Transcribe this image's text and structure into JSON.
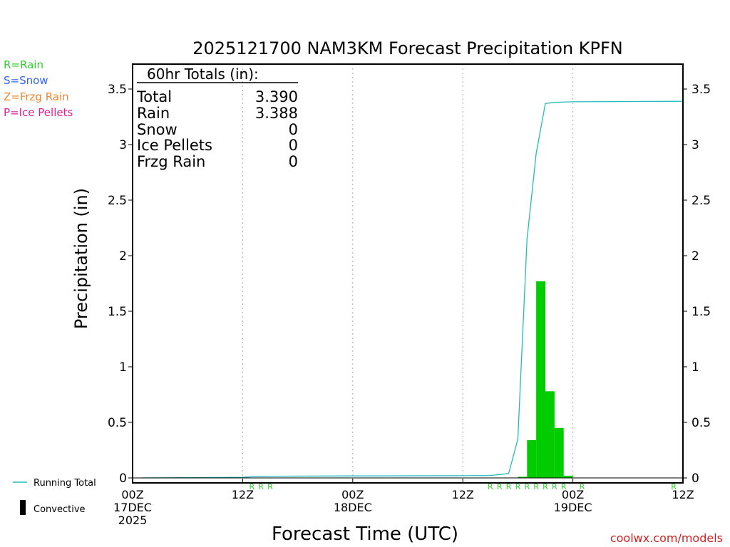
{
  "title": "2025121700 NAM3KM Forecast Precipitation KPFN",
  "legend_ptype": [
    {
      "label": "R=Rain",
      "color": "#33cc33"
    },
    {
      "label": "S=Snow",
      "color": "#3366ee"
    },
    {
      "label": "Z=Frzg Rain",
      "color": "#ee8833"
    },
    {
      "label": "P=Ice Pellets",
      "color": "#dd2299"
    }
  ],
  "legend_bottom": {
    "running_total": "Running Total",
    "convective": "Convective"
  },
  "totals_box": {
    "header": "60hr Totals (in):",
    "rows": [
      {
        "label": "Total",
        "value": "3.390"
      },
      {
        "label": "Rain",
        "value": "3.388"
      },
      {
        "label": "Snow",
        "value": "0"
      },
      {
        "label": "Ice Pellets",
        "value": "0"
      },
      {
        "label": "Frzg Rain",
        "value": "0"
      }
    ]
  },
  "credit": "coolwx.com/models",
  "colors": {
    "running_total": "#22bbbb",
    "bars": "#00cc00",
    "rain_marker": "#33cc33",
    "credit": "#cc2222"
  },
  "chart_data": {
    "type": "bar",
    "title": "2025121700 NAM3KM Forecast Precipitation KPFN",
    "xlabel": "Forecast Time (UTC)",
    "ylabel": "Precipitation (in)",
    "xlim": [
      0,
      60
    ],
    "ylim": [
      0,
      3.7
    ],
    "y_ticks": [
      0,
      0.5,
      1,
      1.5,
      2,
      2.5,
      3,
      3.5
    ],
    "y_tick_labels": [
      "0",
      "0.5",
      "1",
      "1.5",
      "2",
      "2.5",
      "3",
      "3.5"
    ],
    "x_ticks": [
      {
        "hour": 0,
        "lines": [
          "00Z",
          "17DEC",
          "2025"
        ]
      },
      {
        "hour": 12,
        "lines": [
          "12Z"
        ]
      },
      {
        "hour": 24,
        "lines": [
          "00Z",
          "18DEC"
        ]
      },
      {
        "hour": 36,
        "lines": [
          "12Z"
        ]
      },
      {
        "hour": 48,
        "lines": [
          "00Z",
          "19DEC"
        ]
      },
      {
        "hour": 60,
        "lines": [
          "12Z"
        ]
      }
    ],
    "grid_hours": [
      12,
      24,
      36,
      48
    ],
    "bars_hourly": [
      {
        "hour": 42,
        "value": 0.01
      },
      {
        "hour": 43,
        "value": 0.34
      },
      {
        "hour": 44,
        "value": 1.77
      },
      {
        "hour": 45,
        "value": 0.78
      },
      {
        "hour": 46,
        "value": 0.45
      },
      {
        "hour": 47,
        "value": 0.02
      }
    ],
    "running_total": [
      {
        "hour": 1,
        "value": 0.0
      },
      {
        "hour": 12,
        "value": 0.005
      },
      {
        "hour": 13,
        "value": 0.01
      },
      {
        "hour": 14,
        "value": 0.015
      },
      {
        "hour": 24,
        "value": 0.018
      },
      {
        "hour": 36,
        "value": 0.02
      },
      {
        "hour": 39,
        "value": 0.022
      },
      {
        "hour": 40,
        "value": 0.03
      },
      {
        "hour": 41,
        "value": 0.04
      },
      {
        "hour": 42,
        "value": 0.35
      },
      {
        "hour": 43,
        "value": 2.15
      },
      {
        "hour": 44,
        "value": 2.92
      },
      {
        "hour": 45,
        "value": 3.37
      },
      {
        "hour": 46,
        "value": 3.38
      },
      {
        "hour": 48,
        "value": 3.385
      },
      {
        "hour": 60,
        "value": 3.39
      }
    ],
    "precip_type_markers": [
      {
        "hour": 13,
        "type": "R"
      },
      {
        "hour": 14,
        "type": "R"
      },
      {
        "hour": 15,
        "type": "R"
      },
      {
        "hour": 39,
        "type": "R"
      },
      {
        "hour": 40,
        "type": "R"
      },
      {
        "hour": 41,
        "type": "R"
      },
      {
        "hour": 42,
        "type": "R"
      },
      {
        "hour": 43,
        "type": "R"
      },
      {
        "hour": 44,
        "type": "R"
      },
      {
        "hour": 45,
        "type": "R"
      },
      {
        "hour": 46,
        "type": "R"
      },
      {
        "hour": 47,
        "type": "R"
      },
      {
        "hour": 49,
        "type": "R"
      },
      {
        "hour": 59,
        "type": "R"
      }
    ]
  }
}
